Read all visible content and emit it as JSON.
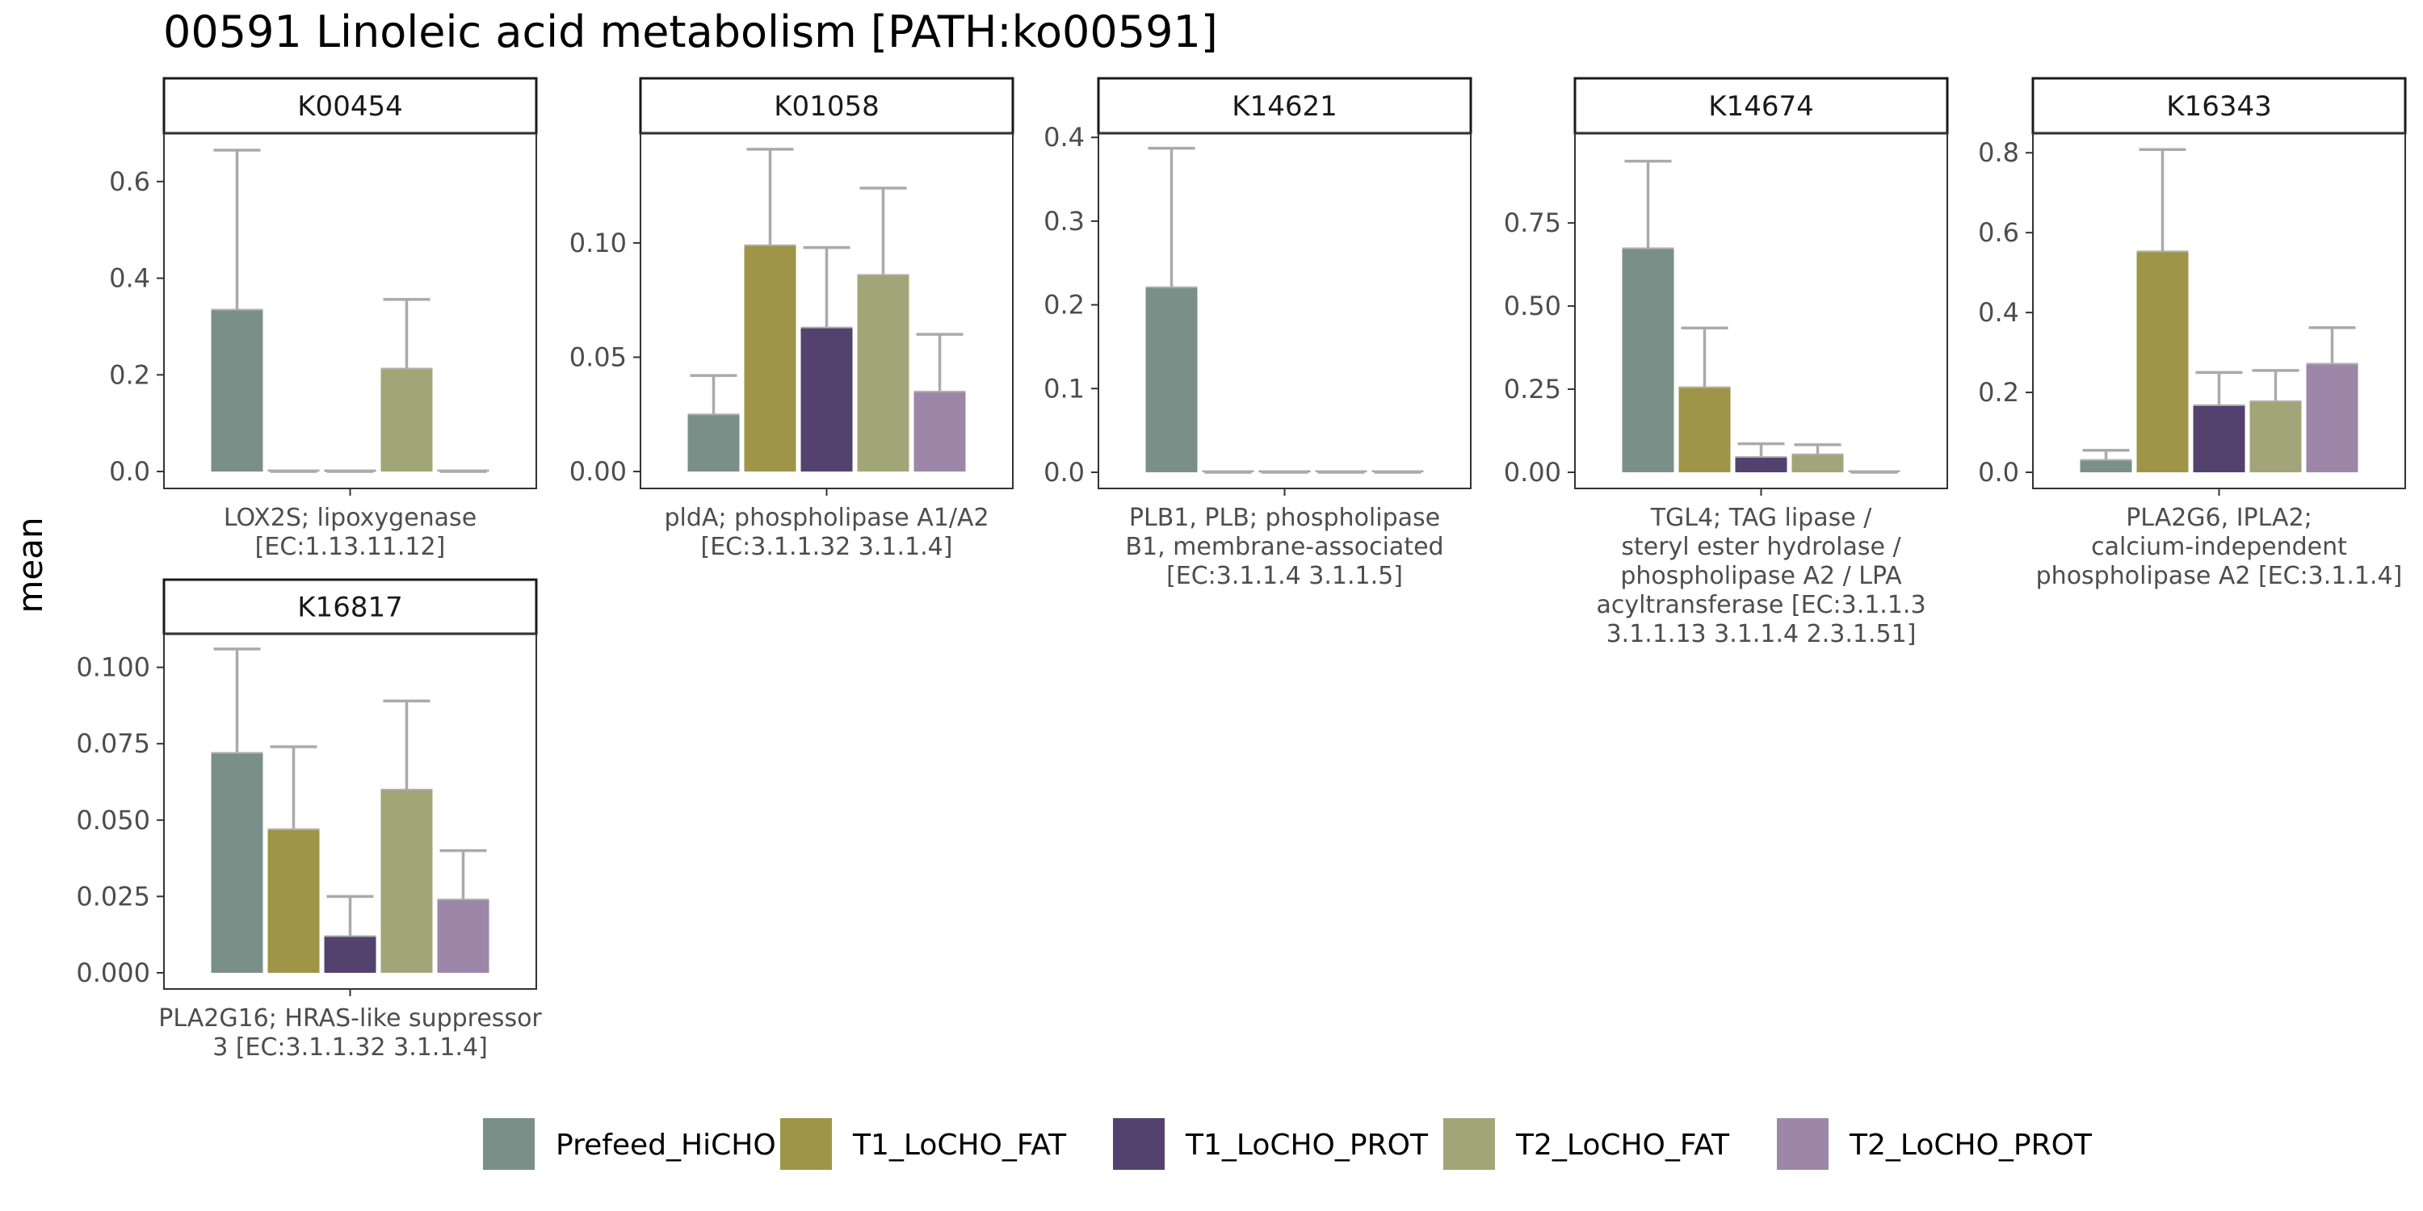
{
  "chart_data": {
    "type": "bar",
    "title": "00591 Linoleic acid metabolism [PATH:ko00591]",
    "ylabel": "mean",
    "xlabel": "",
    "grid": false,
    "legend_position": "bottom",
    "groups": [
      "Prefeed_HiCHO",
      "T1_LoCHO_FAT",
      "T1_LoCHO_PROT",
      "T2_LoCHO_FAT",
      "T2_LoCHO_PROT"
    ],
    "colors": [
      "#7a8f88",
      "#9e9548",
      "#54426e",
      "#a2a577",
      "#9c87a8"
    ],
    "error_bar_color": "#aaaaaa",
    "panels": [
      {
        "strip": "K00454",
        "category_label": [
          "LOX2S; lipoxygenase",
          "[EC:1.13.11.12]"
        ],
        "ylim": [
          -0.035,
          0.7
        ],
        "yticks": [
          0.0,
          0.2,
          0.4,
          0.6
        ],
        "ytick_labels": [
          "0.0",
          "0.2",
          "0.4",
          "0.6"
        ],
        "values": [
          0.335,
          0.0,
          0.0,
          0.213,
          0.0
        ],
        "errors": [
          0.33,
          0.0,
          0.0,
          0.143,
          0.0
        ]
      },
      {
        "strip": "K01058",
        "category_label": [
          "pldA; phospholipase A1/A2",
          "[EC:3.1.1.32 3.1.1.4]"
        ],
        "ylim": [
          -0.0074,
          0.148
        ],
        "yticks": [
          0.0,
          0.05,
          0.1
        ],
        "ytick_labels": [
          "0.00",
          "0.05",
          "0.10"
        ],
        "values": [
          0.025,
          0.099,
          0.063,
          0.086,
          0.035
        ],
        "errors": [
          0.017,
          0.042,
          0.035,
          0.038,
          0.025
        ]
      },
      {
        "strip": "K14621",
        "category_label": [
          "PLB1, PLB; phospholipase",
          "B1, membrane-associated",
          "[EC:3.1.1.4 3.1.1.5]"
        ],
        "ylim": [
          -0.0193,
          0.405
        ],
        "yticks": [
          0.0,
          0.1,
          0.2,
          0.3,
          0.4
        ],
        "ytick_labels": [
          "0.0",
          "0.1",
          "0.2",
          "0.3",
          "0.4"
        ],
        "values": [
          0.221,
          0.0,
          0.0,
          0.0,
          0.0
        ],
        "errors": [
          0.166,
          0.0,
          0.0,
          0.0,
          0.0
        ]
      },
      {
        "strip": "K14674",
        "category_label": [
          "TGL4; TAG lipase /",
          "steryl ester hydrolase /",
          "phospholipase A2 / LPA",
          "acyltransferase [EC:3.1.1.3",
          "3.1.1.13 3.1.1.4 2.3.1.51]"
        ],
        "ylim": [
          -0.0486,
          1.02
        ],
        "yticks": [
          0.0,
          0.25,
          0.5,
          0.75
        ],
        "ytick_labels": [
          "0.00",
          "0.25",
          "0.50",
          "0.75"
        ],
        "values": [
          0.674,
          0.256,
          0.046,
          0.054,
          0.0
        ],
        "errors": [
          0.262,
          0.178,
          0.04,
          0.029,
          0.0
        ]
      },
      {
        "strip": "K16343",
        "category_label": [
          "PLA2G6, IPLA2;",
          "calcium-independent",
          "phospholipase A2 [EC:3.1.1.4]"
        ],
        "ylim": [
          -0.0404,
          0.849
        ],
        "yticks": [
          0.0,
          0.2,
          0.4,
          0.6,
          0.8
        ],
        "ytick_labels": [
          "0.0",
          "0.2",
          "0.4",
          "0.6",
          "0.8"
        ],
        "values": [
          0.031,
          0.553,
          0.168,
          0.178,
          0.272
        ],
        "errors": [
          0.024,
          0.255,
          0.082,
          0.077,
          0.09
        ]
      },
      {
        "strip": "K16817",
        "category_label": [
          "PLA2G16; HRAS-like suppressor",
          "3 [EC:3.1.1.32 3.1.1.4]"
        ],
        "ylim": [
          -0.0053,
          0.111
        ],
        "yticks": [
          0.0,
          0.025,
          0.05,
          0.075,
          0.1
        ],
        "ytick_labels": [
          "0.000",
          "0.025",
          "0.050",
          "0.075",
          "0.100"
        ],
        "values": [
          0.072,
          0.047,
          0.012,
          0.06,
          0.024
        ],
        "errors": [
          0.034,
          0.027,
          0.013,
          0.029,
          0.016
        ]
      }
    ]
  }
}
